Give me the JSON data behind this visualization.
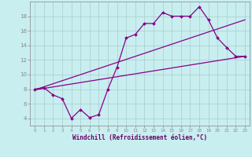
{
  "xlabel": "Windchill (Refroidissement éolien,°C)",
  "bg_color": "#c8eef0",
  "line_color": "#880088",
  "grid_color": "#aacccc",
  "x_data": [
    0,
    1,
    2,
    3,
    4,
    5,
    6,
    7,
    8,
    9,
    10,
    11,
    12,
    13,
    14,
    15,
    16,
    17,
    18,
    19,
    20,
    21,
    22,
    23
  ],
  "y_measured": [
    8.0,
    8.2,
    7.2,
    6.7,
    4.0,
    5.2,
    4.1,
    4.5,
    8.0,
    11.0,
    15.0,
    15.5,
    17.0,
    17.0,
    18.5,
    18.0,
    18.0,
    18.0,
    19.3,
    17.5,
    15.0,
    13.7,
    12.5,
    12.5
  ],
  "ylim": [
    3.0,
    20.0
  ],
  "yticks": [
    4,
    6,
    8,
    10,
    12,
    14,
    16,
    18
  ],
  "xlim": [
    0,
    23
  ],
  "reg_line1_start": 7.9,
  "reg_line1_end": 12.5,
  "reg_line2_start": 7.9,
  "reg_line2_end": 17.5
}
